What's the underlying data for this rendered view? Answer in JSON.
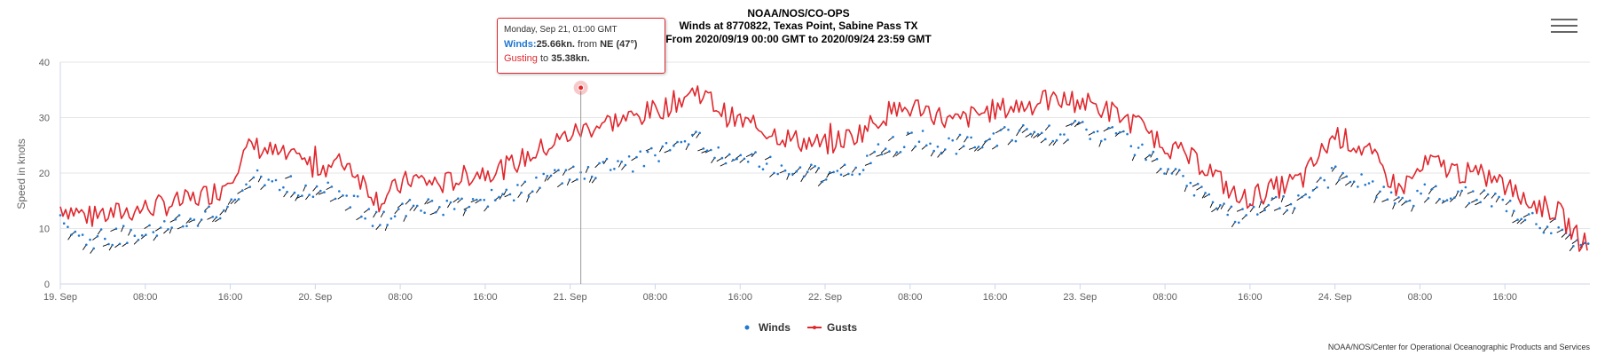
{
  "header": {
    "line1": "NOAA/NOS/CO-OPS",
    "line2": "Winds at 8770822, Texas Point, Sabine Pass TX",
    "line3": "From 2020/09/19 00:00 GMT to 2020/09/24 23:59 GMT"
  },
  "credit": "NOAA/NOS/Center for Operational Oceanographic Products and Services",
  "tooltip": {
    "date": "Monday, Sep 21, 01:00 GMT",
    "winds_label": "Winds:",
    "winds_value": "25.66kn.",
    "from_text": " from ",
    "direction": "NE (47°)",
    "gust_label": "Gusting",
    "to_text": " to ",
    "gust_value": "35.38kn."
  },
  "colors": {
    "winds": "#1f78d1",
    "gusts": "#e0272d",
    "arrows": "#000000",
    "grid": "#e6e6e6"
  },
  "chart_data": {
    "type": "line",
    "title": "NOAA/NOS/CO-OPS",
    "ylabel": "Speed in knots",
    "ylim": [
      0,
      40
    ],
    "yticks": [
      0,
      10,
      20,
      30,
      40
    ],
    "xlim": [
      "2020-09-19 00:00",
      "2020-09-24 23:59"
    ],
    "xtick_labels": [
      "19. Sep",
      "08:00",
      "16:00",
      "20. Sep",
      "08:00",
      "16:00",
      "21. Sep",
      "08:00",
      "16:00",
      "22. Sep",
      "08:00",
      "16:00",
      "23. Sep",
      "08:00",
      "16:00",
      "24. Sep",
      "08:00",
      "16:00"
    ],
    "legend_placement": "bottom-center",
    "grid": true,
    "highlight": {
      "x": "2020-09-21 01:00",
      "winds": 25.66,
      "gust": 35.38,
      "direction_deg": 47
    },
    "series": [
      {
        "name": "Winds",
        "type": "scatter",
        "color": "#1f78d1",
        "x_hours": [
          0,
          3,
          6,
          9,
          12,
          15,
          18,
          21,
          24,
          27,
          30,
          33,
          36,
          39,
          42,
          45,
          48,
          51,
          54,
          57,
          60,
          63,
          66,
          69,
          72,
          75,
          78,
          81,
          84,
          87,
          90,
          93,
          96,
          99,
          102,
          105,
          108,
          111,
          114,
          117,
          120,
          123,
          126,
          129,
          132,
          135,
          138,
          141,
          143
        ],
        "values": [
          11,
          8,
          9,
          10,
          11,
          13,
          19,
          18,
          17,
          16,
          11,
          14,
          14,
          15,
          16,
          18,
          20,
          21,
          22,
          24,
          26,
          23,
          22,
          21,
          20,
          21,
          25,
          26,
          25,
          26,
          27,
          27,
          28,
          27,
          24,
          20,
          16,
          12,
          14,
          15,
          20,
          18,
          14,
          17,
          16,
          15,
          12,
          10,
          6
        ]
      },
      {
        "name": "Gusts",
        "type": "line",
        "color": "#e0272d",
        "x_hours": [
          0,
          3,
          6,
          9,
          12,
          15,
          18,
          21,
          24,
          27,
          30,
          33,
          36,
          39,
          42,
          45,
          48,
          51,
          54,
          57,
          60,
          63,
          66,
          69,
          72,
          75,
          78,
          81,
          84,
          87,
          90,
          93,
          96,
          99,
          102,
          105,
          108,
          111,
          114,
          117,
          120,
          123,
          126,
          129,
          132,
          135,
          138,
          141,
          143
        ],
        "values": [
          14,
          12,
          13,
          14,
          15,
          17,
          25,
          23,
          21,
          22,
          15,
          19,
          18,
          20,
          21,
          24,
          27,
          29,
          30,
          32,
          35,
          30,
          28,
          26,
          25,
          27,
          31,
          32,
          29,
          31,
          32,
          33,
          33,
          31,
          28,
          24,
          21,
          15,
          17,
          19,
          27,
          24,
          17,
          22,
          20,
          19,
          15,
          13,
          8
        ]
      }
    ]
  }
}
